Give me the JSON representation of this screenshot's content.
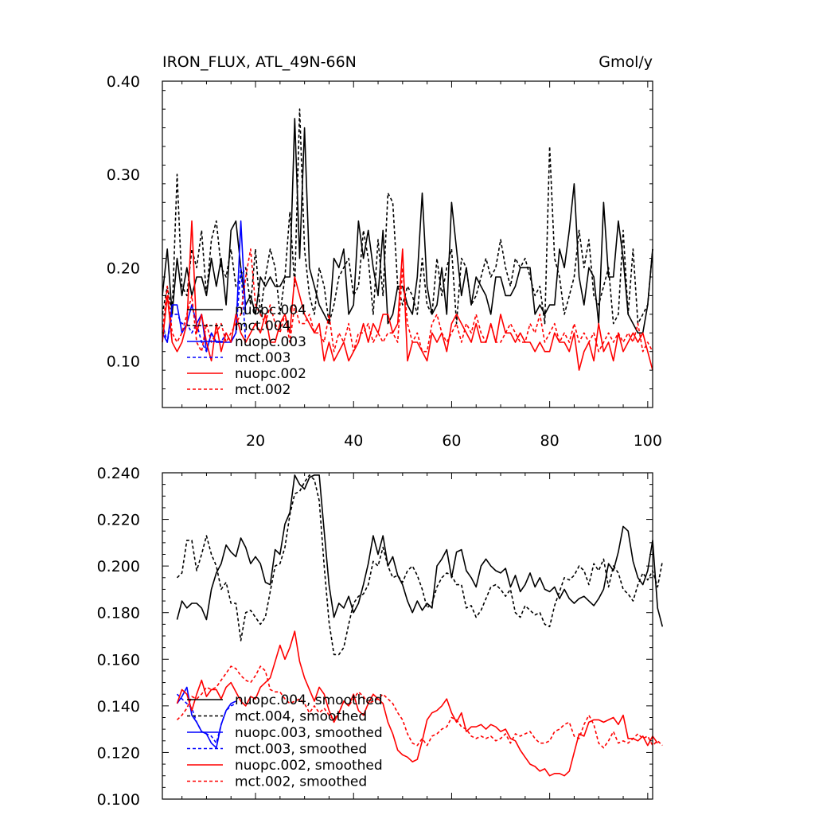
{
  "chart_data": [
    {
      "type": "line",
      "title": "IRON_FLUX, ATL_49N-66N",
      "units": "Gmol/y",
      "xlim": [
        1,
        101
      ],
      "ylim": [
        0.05,
        0.4
      ],
      "xticks": [
        20,
        40,
        60,
        80,
        100
      ],
      "xtick_labels": [
        "20",
        "40",
        "60",
        "80",
        "100"
      ],
      "yticks": [
        0.1,
        0.2,
        0.3,
        0.4
      ],
      "ytick_labels": [
        "0.10",
        "0.20",
        "0.30",
        "0.40"
      ],
      "legend_position": "lower-left",
      "series": [
        {
          "name": "nuopc.004",
          "color": "#000000",
          "dash": "solid",
          "x_start": 1,
          "values": [
            0.17,
            0.22,
            0.15,
            0.21,
            0.17,
            0.2,
            0.17,
            0.19,
            0.19,
            0.17,
            0.21,
            0.18,
            0.21,
            0.16,
            0.24,
            0.25,
            0.2,
            0.16,
            0.17,
            0.15,
            0.19,
            0.18,
            0.19,
            0.18,
            0.18,
            0.19,
            0.19,
            0.36,
            0.21,
            0.35,
            0.2,
            0.18,
            0.16,
            0.15,
            0.14,
            0.21,
            0.2,
            0.22,
            0.15,
            0.16,
            0.25,
            0.21,
            0.24,
            0.2,
            0.17,
            0.24,
            0.14,
            0.15,
            0.18,
            0.18,
            0.16,
            0.15,
            0.19,
            0.28,
            0.18,
            0.15,
            0.16,
            0.2,
            0.15,
            0.27,
            0.22,
            0.17,
            0.2,
            0.16,
            0.19,
            0.18,
            0.17,
            0.15,
            0.19,
            0.19,
            0.17,
            0.17,
            0.18,
            0.2,
            0.2,
            0.2,
            0.15,
            0.16,
            0.15,
            0.16,
            0.16,
            0.22,
            0.2,
            0.24,
            0.29,
            0.19,
            0.16,
            0.2,
            0.19,
            0.14,
            0.27,
            0.19,
            0.19,
            0.25,
            0.21,
            0.15,
            0.14,
            0.13,
            0.13,
            0.16,
            0.22
          ]
        },
        {
          "name": "mct.004",
          "color": "#000000",
          "dash": "dashed",
          "x_start": 1,
          "values": [
            0.15,
            0.18,
            0.15,
            0.3,
            0.18,
            0.17,
            0.22,
            0.2,
            0.24,
            0.17,
            0.23,
            0.25,
            0.2,
            0.19,
            0.22,
            0.18,
            0.19,
            0.2,
            0.16,
            0.22,
            0.15,
            0.19,
            0.22,
            0.2,
            0.15,
            0.19,
            0.26,
            0.18,
            0.37,
            0.22,
            0.17,
            0.15,
            0.2,
            0.18,
            0.14,
            0.16,
            0.19,
            0.2,
            0.21,
            0.17,
            0.18,
            0.24,
            0.21,
            0.15,
            0.23,
            0.17,
            0.28,
            0.27,
            0.18,
            0.16,
            0.18,
            0.17,
            0.15,
            0.21,
            0.16,
            0.15,
            0.21,
            0.17,
            0.2,
            0.22,
            0.14,
            0.21,
            0.2,
            0.16,
            0.17,
            0.19,
            0.21,
            0.19,
            0.2,
            0.23,
            0.2,
            0.18,
            0.21,
            0.2,
            0.21,
            0.19,
            0.17,
            0.18,
            0.14,
            0.33,
            0.21,
            0.19,
            0.15,
            0.17,
            0.19,
            0.24,
            0.2,
            0.23,
            0.17,
            0.16,
            0.18,
            0.2,
            0.14,
            0.15,
            0.24,
            0.15,
            0.22,
            0.14,
            0.15,
            0.16,
            0.22
          ]
        },
        {
          "name": "nuopc.003",
          "color": "#0000ff",
          "dash": "solid",
          "x_start": 1,
          "values": [
            0.13,
            0.12,
            0.16,
            0.16,
            0.13,
            0.14,
            0.16,
            0.14,
            0.15,
            0.11,
            0.13,
            0.12,
            0.12,
            0.12,
            0.12,
            0.13,
            0.25,
            0.15
          ]
        },
        {
          "name": "mct.003",
          "color": "#0000ff",
          "dash": "dashed",
          "x_start": 1,
          "values": [
            0.14,
            0.12,
            0.15,
            0.15,
            0.14,
            0.14,
            0.13,
            0.14,
            0.12,
            0.11,
            0.13,
            0.12,
            0.12,
            0.13,
            0.12,
            0.13,
            0.2,
            0.12
          ]
        },
        {
          "name": "nuopc.002",
          "color": "#ff0000",
          "dash": "solid",
          "x_start": 1,
          "values": [
            0.12,
            0.17,
            0.12,
            0.11,
            0.12,
            0.14,
            0.25,
            0.13,
            0.15,
            0.12,
            0.1,
            0.14,
            0.11,
            0.13,
            0.12,
            0.15,
            0.13,
            0.12,
            0.13,
            0.14,
            0.13,
            0.15,
            0.12,
            0.12,
            0.14,
            0.15,
            0.13,
            0.19,
            0.17,
            0.15,
            0.14,
            0.13,
            0.14,
            0.1,
            0.12,
            0.1,
            0.11,
            0.12,
            0.1,
            0.11,
            0.12,
            0.14,
            0.12,
            0.14,
            0.13,
            0.15,
            0.15,
            0.13,
            0.14,
            0.22,
            0.1,
            0.12,
            0.12,
            0.11,
            0.1,
            0.13,
            0.12,
            0.13,
            0.11,
            0.14,
            0.15,
            0.14,
            0.13,
            0.12,
            0.14,
            0.12,
            0.12,
            0.14,
            0.12,
            0.15,
            0.13,
            0.13,
            0.12,
            0.13,
            0.12,
            0.12,
            0.11,
            0.12,
            0.11,
            0.11,
            0.13,
            0.12,
            0.12,
            0.11,
            0.13,
            0.09,
            0.11,
            0.12,
            0.1,
            0.14,
            0.11,
            0.12,
            0.1,
            0.13,
            0.11,
            0.12,
            0.13,
            0.12,
            0.13,
            0.11,
            0.09
          ]
        },
        {
          "name": "mct.002",
          "color": "#ff0000",
          "dash": "dashed",
          "x_start": 1,
          "values": [
            0.13,
            0.18,
            0.13,
            0.12,
            0.13,
            0.15,
            0.17,
            0.12,
            0.11,
            0.14,
            0.12,
            0.13,
            0.14,
            0.12,
            0.13,
            0.14,
            0.15,
            0.19,
            0.22,
            0.16,
            0.15,
            0.14,
            0.16,
            0.14,
            0.13,
            0.15,
            0.12,
            0.16,
            0.14,
            0.14,
            0.15,
            0.13,
            0.13,
            0.12,
            0.15,
            0.11,
            0.13,
            0.12,
            0.14,
            0.11,
            0.13,
            0.13,
            0.14,
            0.12,
            0.13,
            0.12,
            0.13,
            0.13,
            0.12,
            0.2,
            0.14,
            0.12,
            0.13,
            0.11,
            0.11,
            0.14,
            0.15,
            0.13,
            0.12,
            0.13,
            0.14,
            0.12,
            0.14,
            0.13,
            0.15,
            0.13,
            0.12,
            0.14,
            0.12,
            0.12,
            0.13,
            0.14,
            0.13,
            0.12,
            0.12,
            0.14,
            0.13,
            0.15,
            0.12,
            0.13,
            0.14,
            0.12,
            0.13,
            0.12,
            0.14,
            0.12,
            0.13,
            0.12,
            0.13,
            0.11,
            0.12,
            0.13,
            0.12,
            0.13,
            0.12,
            0.13,
            0.12,
            0.14,
            0.11,
            0.12,
            0.11
          ]
        }
      ],
      "legend": {
        "entries": [
          "nuopc.004",
          "mct.004",
          "nuopc.003",
          "mct.003",
          "nuopc.002",
          "mct.002"
        ]
      }
    },
    {
      "type": "line",
      "title": "",
      "xlim": [
        1,
        101
      ],
      "ylim": [
        0.1,
        0.24
      ],
      "xticks": [
        20,
        40,
        60,
        80,
        100
      ],
      "xtick_labels": [],
      "yticks": [
        0.1,
        0.12,
        0.14,
        0.16,
        0.18,
        0.2,
        0.22,
        0.24
      ],
      "ytick_labels": [
        "0.100",
        "0.120",
        "0.140",
        "0.160",
        "0.180",
        "0.200",
        "0.220",
        "0.240"
      ],
      "legend_position": "lower-left",
      "series": [
        {
          "name": "nuopc.004, smoothed",
          "color": "#000000",
          "dash": "solid",
          "x_start": 4,
          "values": [
            0.177,
            0.185,
            0.182,
            0.184,
            0.184,
            0.182,
            0.177,
            0.19,
            0.197,
            0.201,
            0.209,
            0.206,
            0.204,
            0.212,
            0.208,
            0.201,
            0.204,
            0.201,
            0.193,
            0.192,
            0.207,
            0.205,
            0.218,
            0.223,
            0.239,
            0.235,
            0.233,
            0.238,
            0.239,
            0.239,
            0.215,
            0.192,
            0.178,
            0.184,
            0.182,
            0.187,
            0.18,
            0.184,
            0.192,
            0.201,
            0.213,
            0.205,
            0.213,
            0.2,
            0.204,
            0.196,
            0.192,
            0.185,
            0.18,
            0.185,
            0.181,
            0.184,
            0.182,
            0.2,
            0.203,
            0.207,
            0.195,
            0.206,
            0.207,
            0.198,
            0.195,
            0.191,
            0.2,
            0.203,
            0.2,
            0.198,
            0.197,
            0.199,
            0.191,
            0.196,
            0.189,
            0.192,
            0.197,
            0.191,
            0.195,
            0.19,
            0.189,
            0.191,
            0.186,
            0.19,
            0.186,
            0.184,
            0.186,
            0.187,
            0.185,
            0.183,
            0.186,
            0.19,
            0.201,
            0.198,
            0.206,
            0.217,
            0.215,
            0.202,
            0.195,
            0.192,
            0.198,
            0.211,
            0.182,
            0.174
          ]
        },
        {
          "name": "mct.004, smoothed",
          "color": "#000000",
          "dash": "dashed",
          "x_start": 4,
          "values": [
            0.195,
            0.197,
            0.211,
            0.211,
            0.198,
            0.205,
            0.213,
            0.205,
            0.2,
            0.19,
            0.193,
            0.184,
            0.184,
            0.168,
            0.18,
            0.181,
            0.178,
            0.175,
            0.178,
            0.189,
            0.2,
            0.201,
            0.208,
            0.222,
            0.231,
            0.232,
            0.236,
            0.239,
            0.237,
            0.228,
            0.2,
            0.176,
            0.162,
            0.162,
            0.165,
            0.175,
            0.184,
            0.187,
            0.188,
            0.192,
            0.202,
            0.2,
            0.208,
            0.2,
            0.195,
            0.196,
            0.193,
            0.198,
            0.2,
            0.196,
            0.19,
            0.182,
            0.184,
            0.191,
            0.195,
            0.197,
            0.196,
            0.192,
            0.192,
            0.182,
            0.183,
            0.178,
            0.181,
            0.186,
            0.191,
            0.192,
            0.19,
            0.187,
            0.19,
            0.18,
            0.178,
            0.183,
            0.181,
            0.179,
            0.18,
            0.175,
            0.174,
            0.183,
            0.189,
            0.195,
            0.194,
            0.196,
            0.2,
            0.198,
            0.192,
            0.201,
            0.198,
            0.203,
            0.191,
            0.2,
            0.197,
            0.19,
            0.188,
            0.185,
            0.192,
            0.197,
            0.194,
            0.198,
            0.191,
            0.202
          ]
        },
        {
          "name": "nuopc.003, smoothed",
          "color": "#0000ff",
          "dash": "solid",
          "x_start": 4,
          "values": [
            0.141,
            0.144,
            0.148,
            0.136,
            0.133,
            0.129,
            0.128,
            0.124,
            0.122,
            0.132,
            0.138,
            0.141,
            0.142
          ]
        },
        {
          "name": "mct.003, smoothed",
          "color": "#0000ff",
          "dash": "dashed",
          "x_start": 4,
          "values": [
            0.145,
            0.143,
            0.141,
            0.139,
            0.133,
            0.129,
            0.128,
            0.127,
            0.124,
            0.132,
            0.138,
            0.14,
            0.141
          ]
        },
        {
          "name": "nuopc.002, smoothed",
          "color": "#ff0000",
          "dash": "solid",
          "x_start": 4,
          "values": [
            0.141,
            0.147,
            0.145,
            0.138,
            0.145,
            0.151,
            0.144,
            0.147,
            0.147,
            0.143,
            0.148,
            0.15,
            0.146,
            0.142,
            0.14,
            0.144,
            0.143,
            0.148,
            0.15,
            0.152,
            0.159,
            0.166,
            0.16,
            0.165,
            0.172,
            0.159,
            0.152,
            0.147,
            0.142,
            0.148,
            0.145,
            0.138,
            0.133,
            0.137,
            0.142,
            0.14,
            0.145,
            0.138,
            0.136,
            0.141,
            0.145,
            0.143,
            0.141,
            0.133,
            0.128,
            0.121,
            0.119,
            0.118,
            0.116,
            0.117,
            0.125,
            0.134,
            0.137,
            0.138,
            0.14,
            0.143,
            0.137,
            0.133,
            0.137,
            0.129,
            0.131,
            0.131,
            0.132,
            0.13,
            0.132,
            0.131,
            0.129,
            0.13,
            0.126,
            0.125,
            0.121,
            0.118,
            0.115,
            0.114,
            0.112,
            0.113,
            0.11,
            0.111,
            0.111,
            0.11,
            0.112,
            0.12,
            0.128,
            0.127,
            0.133,
            0.134,
            0.134,
            0.133,
            0.134,
            0.135,
            0.132,
            0.136,
            0.126,
            0.126,
            0.125,
            0.127,
            0.123,
            0.127,
            0.124
          ]
        },
        {
          "name": "mct.002, smoothed",
          "color": "#ff0000",
          "dash": "dashed",
          "x_start": 4,
          "values": [
            0.134,
            0.136,
            0.139,
            0.144,
            0.143,
            0.145,
            0.148,
            0.147,
            0.148,
            0.151,
            0.154,
            0.157,
            0.156,
            0.153,
            0.151,
            0.15,
            0.153,
            0.157,
            0.155,
            0.147,
            0.146,
            0.146,
            0.143,
            0.141,
            0.142,
            0.143,
            0.141,
            0.137,
            0.14,
            0.137,
            0.139,
            0.136,
            0.134,
            0.137,
            0.142,
            0.14,
            0.143,
            0.146,
            0.144,
            0.141,
            0.142,
            0.143,
            0.145,
            0.143,
            0.141,
            0.137,
            0.134,
            0.128,
            0.124,
            0.123,
            0.126,
            0.123,
            0.127,
            0.128,
            0.13,
            0.131,
            0.135,
            0.134,
            0.131,
            0.13,
            0.127,
            0.126,
            0.127,
            0.126,
            0.127,
            0.125,
            0.126,
            0.128,
            0.124,
            0.128,
            0.127,
            0.128,
            0.129,
            0.126,
            0.124,
            0.124,
            0.125,
            0.129,
            0.13,
            0.132,
            0.133,
            0.127,
            0.126,
            0.132,
            0.136,
            0.132,
            0.124,
            0.122,
            0.125,
            0.129,
            0.124,
            0.125,
            0.124,
            0.126,
            0.128,
            0.126,
            0.127,
            0.123,
            0.125,
            0.123
          ]
        }
      ],
      "legend": {
        "entries": [
          "nuopc.004, smoothed",
          "mct.004, smoothed",
          "nuopc.003, smoothed",
          "mct.003, smoothed",
          "nuopc.002, smoothed",
          "mct.002, smoothed"
        ]
      }
    }
  ]
}
